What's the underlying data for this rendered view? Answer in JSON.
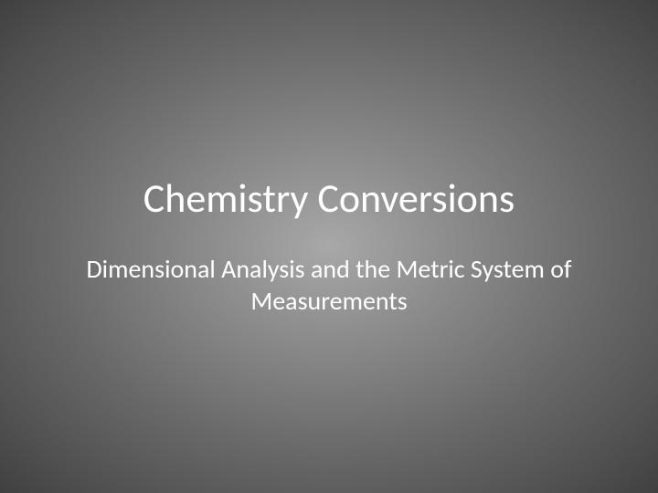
{
  "slide": {
    "title": "Chemistry Conversions",
    "subtitle": "Dimensional Analysis and the Metric System of Measurements",
    "title_fontsize": 44,
    "subtitle_fontsize": 28,
    "title_color": "#ffffff",
    "subtitle_color": "#ffffff",
    "background_gradient_center": "#a8a8a8",
    "background_gradient_edge": "#404040",
    "font_family": "Calibri"
  }
}
